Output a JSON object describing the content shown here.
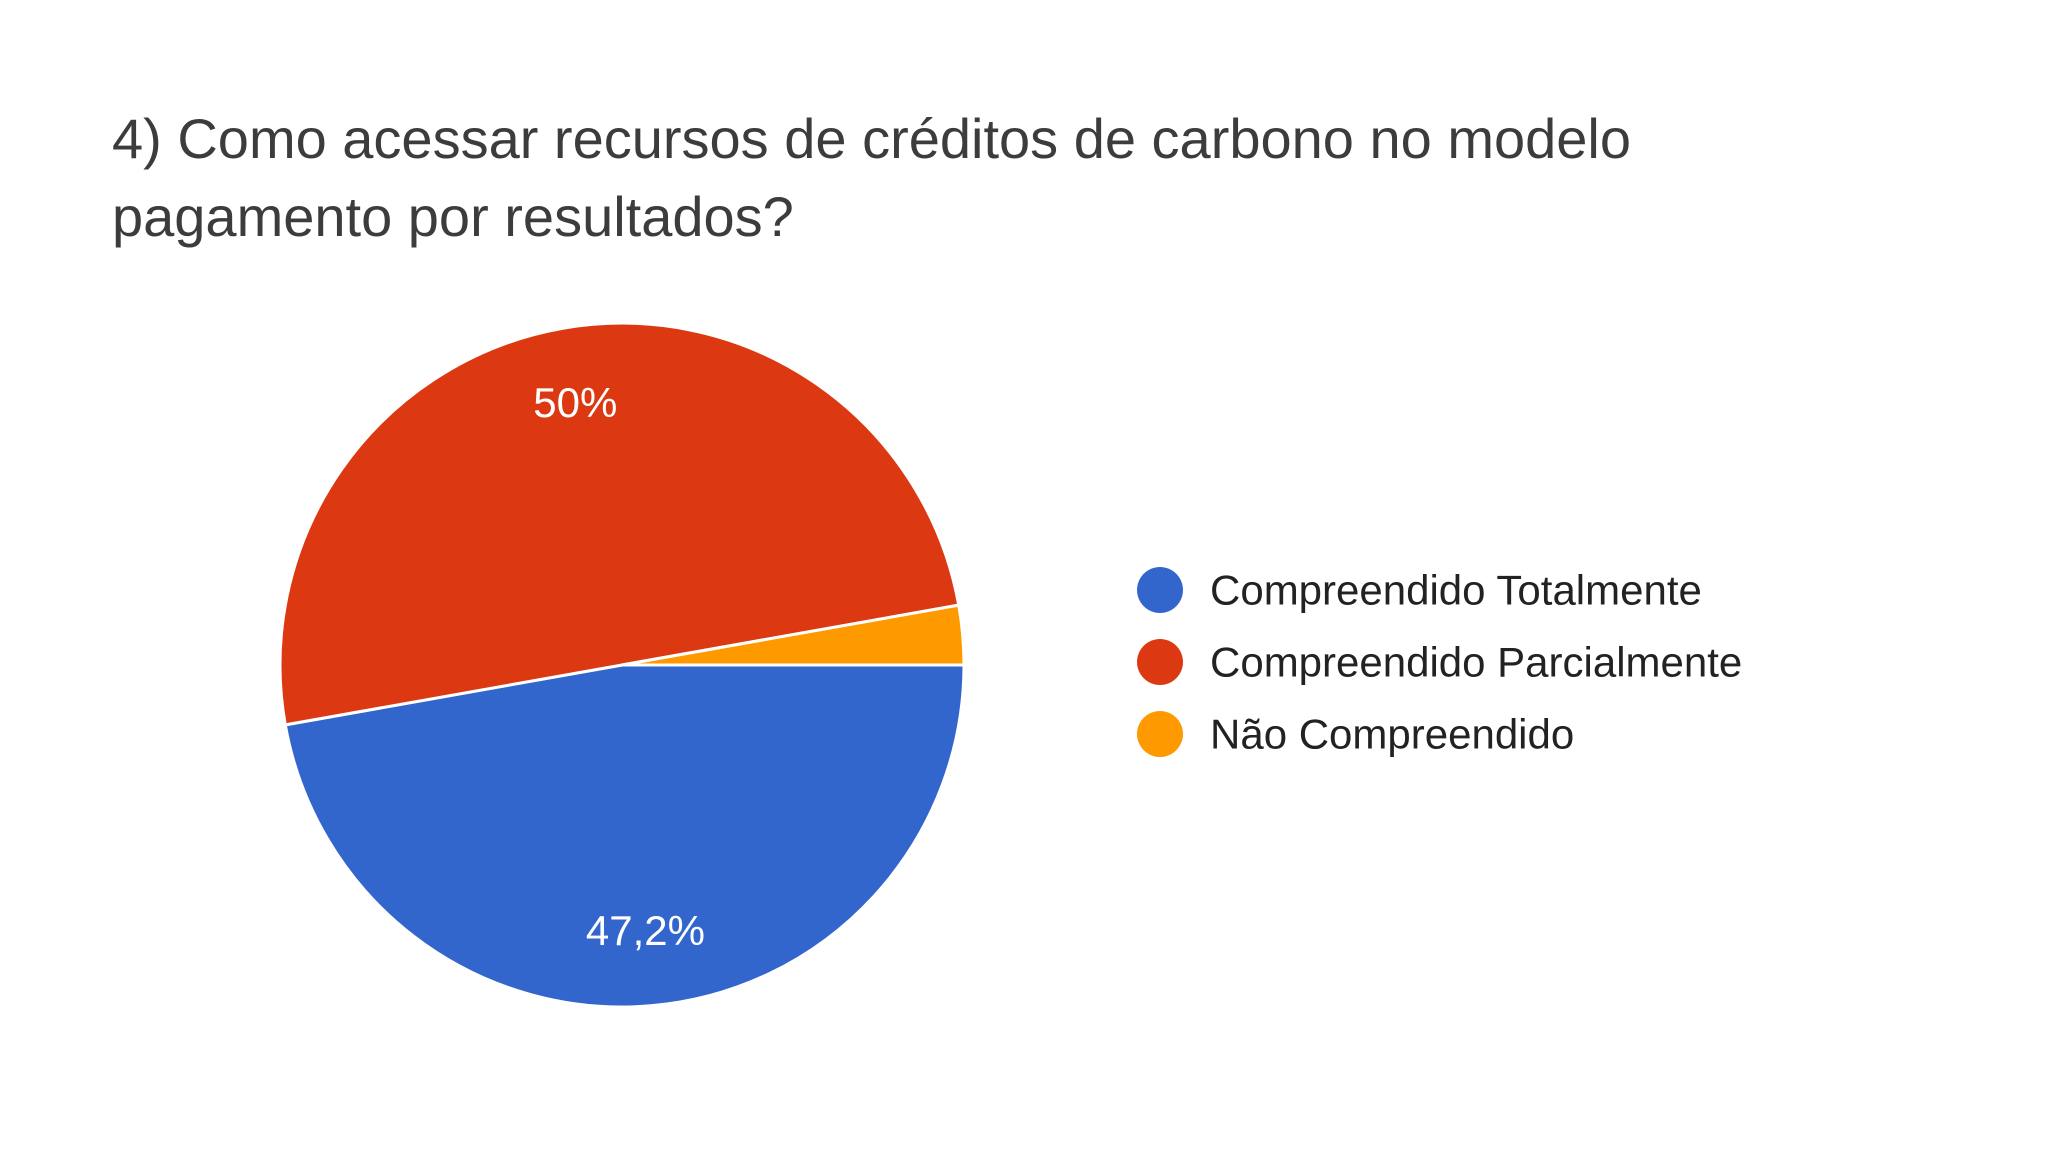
{
  "chart_data": {
    "type": "pie",
    "title": [
      "4) Como acessar recursos de créditos de carbono no modelo",
      "pagamento por resultados?"
    ],
    "legend_position": "right",
    "slices": [
      {
        "label": "Compreendido Totalmente",
        "value": 47.2,
        "display": "47,2%",
        "color": "#3366cc"
      },
      {
        "label": "Compreendido Parcialmente",
        "value": 50.0,
        "display": "50%",
        "color": "#dc3912"
      },
      {
        "label": "Não Compreendido",
        "value": 2.8,
        "display": "",
        "color": "#ff9900"
      }
    ]
  }
}
